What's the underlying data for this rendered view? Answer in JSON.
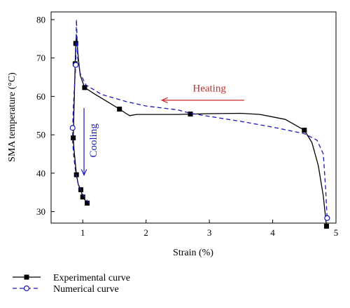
{
  "chart_data": {
    "type": "line",
    "title": "",
    "xlabel": "Strain (%)",
    "ylabel": "SMA temperature (°C)",
    "xlim": [
      0.5,
      5.0
    ],
    "ylim": [
      27,
      82
    ],
    "x_ticks": [
      1,
      2,
      3,
      4,
      5
    ],
    "y_ticks": [
      30,
      40,
      50,
      60,
      70,
      80
    ],
    "grid": false,
    "legend_placement": "below-left",
    "series": [
      {
        "name": "Experimental curve",
        "color": "#000000",
        "line_style": "solid",
        "marker": "filled-square",
        "points": [
          [
            1.07,
            32.2
          ],
          [
            1.0,
            33.8
          ],
          [
            0.97,
            35.7
          ],
          [
            0.93,
            37.0
          ],
          [
            0.9,
            39.6
          ],
          [
            0.88,
            43.0
          ],
          [
            0.86,
            46.5
          ],
          [
            0.85,
            49.2
          ],
          [
            0.86,
            56.0
          ],
          [
            0.87,
            62.0
          ],
          [
            0.88,
            68.5
          ],
          [
            0.89,
            73.8
          ],
          [
            0.9,
            76.0
          ],
          [
            0.91,
            74.0
          ],
          [
            0.93,
            70.0
          ],
          [
            0.96,
            65.5
          ],
          [
            1.03,
            62.3
          ],
          [
            1.2,
            60.5
          ],
          [
            1.4,
            58.5
          ],
          [
            1.58,
            56.7
          ],
          [
            1.68,
            55.6
          ],
          [
            1.74,
            55.0
          ],
          [
            1.85,
            55.3
          ],
          [
            2.1,
            55.3
          ],
          [
            2.5,
            55.3
          ],
          [
            2.7,
            55.4
          ],
          [
            3.0,
            55.5
          ],
          [
            3.5,
            55.6
          ],
          [
            3.8,
            55.3
          ],
          [
            4.2,
            54.0
          ],
          [
            4.5,
            51.2
          ],
          [
            4.62,
            48.0
          ],
          [
            4.72,
            42.0
          ],
          [
            4.8,
            34.0
          ],
          [
            4.85,
            26.2
          ]
        ],
        "marked_points": [
          [
            1.07,
            32.2
          ],
          [
            1.0,
            33.8
          ],
          [
            0.97,
            35.7
          ],
          [
            0.9,
            39.6
          ],
          [
            0.85,
            49.2
          ],
          [
            0.88,
            68.5
          ],
          [
            0.89,
            73.8
          ],
          [
            1.03,
            62.3
          ],
          [
            1.58,
            56.7
          ],
          [
            2.7,
            55.4
          ],
          [
            4.5,
            51.2
          ],
          [
            4.85,
            26.2
          ]
        ]
      },
      {
        "name": "Numerical curve",
        "color": "#1a1ab8",
        "line_style": "dashed",
        "marker": "open-circle",
        "points": [
          [
            1.1,
            32.2
          ],
          [
            1.0,
            34.5
          ],
          [
            0.93,
            37.0
          ],
          [
            0.89,
            40.0
          ],
          [
            0.86,
            44.0
          ],
          [
            0.84,
            48.0
          ],
          [
            0.84,
            51.8
          ],
          [
            0.85,
            57.0
          ],
          [
            0.87,
            63.0
          ],
          [
            0.89,
            68.2
          ],
          [
            0.9,
            80.0
          ],
          [
            0.92,
            70.0
          ],
          [
            0.96,
            66.0
          ],
          [
            1.05,
            63.0
          ],
          [
            1.3,
            60.5
          ],
          [
            1.7,
            58.6
          ],
          [
            2.0,
            57.5
          ],
          [
            2.5,
            56.5
          ],
          [
            2.7,
            55.6
          ],
          [
            3.0,
            54.8
          ],
          [
            3.5,
            53.5
          ],
          [
            4.0,
            52.0
          ],
          [
            4.5,
            50.3
          ],
          [
            4.7,
            48.6
          ],
          [
            4.8,
            45.0
          ],
          [
            4.84,
            35.0
          ],
          [
            4.86,
            28.3
          ]
        ],
        "marked_points": [
          [
            0.84,
            51.8
          ],
          [
            0.89,
            68.2
          ],
          [
            4.86,
            28.3
          ]
        ]
      }
    ],
    "annotations": [
      {
        "text": "Heating",
        "color": "#cc2a2a",
        "arrow_from": [
          3.55,
          59.0
        ],
        "arrow_to": [
          2.25,
          59.0
        ],
        "label_at": [
          3.0,
          61.3
        ]
      },
      {
        "text": "Cooling",
        "color": "#1a1ab8",
        "arrow_from": [
          1.02,
          57.0
        ],
        "arrow_to": [
          1.02,
          39.5
        ],
        "label_at": [
          1.22,
          48.5
        ],
        "rotated": true
      }
    ]
  }
}
